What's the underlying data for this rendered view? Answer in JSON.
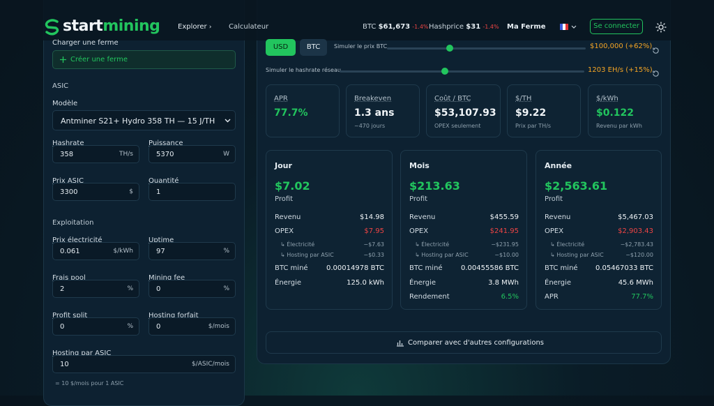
{
  "header": {
    "logo": {
      "start": "start",
      "mining": "mining"
    },
    "nav": [
      "Explorer",
      "Calculateur"
    ],
    "ticker": [
      {
        "label": "BTC",
        "value": "$61,673",
        "change": "-1.4%"
      },
      {
        "label": "Hashprice",
        "value": "$31",
        "change": "-1.4%"
      }
    ],
    "farm": "Ma Ferme",
    "login": "Se connecter"
  },
  "config": {
    "load_label": "Charger une ferme",
    "create_button": "Créer une ferme",
    "asic_section": "ASIC",
    "model_label": "Modèle",
    "model": "Antminer S21+ Hydro 358 TH — 15 J/TH",
    "asic_fields": [
      {
        "label": "Hashrate",
        "value": "358",
        "unit": "TH/s"
      },
      {
        "label": "Puissance",
        "value": "5370",
        "unit": "W"
      },
      {
        "label": "Prix ASIC",
        "value": "3300",
        "unit": "$"
      },
      {
        "label": "Quantité",
        "value": "1"
      }
    ],
    "exploitation_section": "Exploitation",
    "exploitation_fields": [
      {
        "label": "Prix électricité",
        "value": "0.061",
        "unit": "$/kWh"
      },
      {
        "label": "Uptime",
        "value": "97",
        "unit": "%"
      },
      {
        "label": "Frais pool",
        "value": "2",
        "unit": "%"
      },
      {
        "label": "Mining fee",
        "value": "0",
        "unit": "%"
      },
      {
        "label": "Profit split",
        "value": "0",
        "unit": "%"
      },
      {
        "label": "Hosting forfait",
        "value": "0",
        "unit": "$/mois"
      },
      {
        "label": "Hosting par ASIC",
        "value": "10",
        "unit": "$/ASIC/mois"
      }
    ],
    "note": "= 10 $/mois pour 1 ASIC"
  },
  "results": {
    "currencies": [
      "USD",
      "BTC"
    ],
    "sliders": [
      {
        "label": "Simuler le prix BTC",
        "value": "$100,000 (+62%)"
      },
      {
        "label": "Simuler le hashrate réseau",
        "value": "1203 EH/s (+15%)"
      }
    ],
    "kpis": [
      {
        "label": "APR",
        "value": "77.7%",
        "tone": "positive"
      },
      {
        "label": "Breakeven",
        "value": "1.3 ans",
        "sub": "~470 jours"
      },
      {
        "label": "Coût / BTC",
        "value": "$53,107.93",
        "sub": "OPEX seulement"
      },
      {
        "label": "$/TH",
        "value": "$9.22",
        "sub": "Prix par TH/s"
      },
      {
        "label": "$/kWh",
        "value": "$0.122",
        "sub": "Revenu par kWh",
        "tone": "positive"
      }
    ],
    "periods": [
      {
        "title": "Jour",
        "profit": "$7.02",
        "profit_label": "Profit",
        "rows": [
          {
            "label": "Revenu",
            "value": "$14.98"
          },
          {
            "label": "OPEX",
            "value": "$7.95",
            "tone": "negative"
          },
          {
            "label": "↳ Électricité",
            "value": "−$7.63",
            "sub": true
          },
          {
            "label": "↳ Hosting par ASIC",
            "value": "−$0.33",
            "sub": true
          },
          {
            "label": "BTC miné",
            "value": "0.00014978 BTC"
          },
          {
            "label": "Énergie",
            "value": "125.0 kWh"
          }
        ]
      },
      {
        "title": "Mois",
        "profit": "$213.63",
        "profit_label": "Profit",
        "rows": [
          {
            "label": "Revenu",
            "value": "$455.59"
          },
          {
            "label": "OPEX",
            "value": "$241.95",
            "tone": "negative"
          },
          {
            "label": "↳ Électricité",
            "value": "−$231.95",
            "sub": true
          },
          {
            "label": "↳ Hosting par ASIC",
            "value": "−$10.00",
            "sub": true
          },
          {
            "label": "BTC miné",
            "value": "0.00455586 BTC"
          },
          {
            "label": "Énergie",
            "value": "3.8 MWh"
          },
          {
            "label": "Rendement",
            "value": "6.5%",
            "tone": "positive"
          }
        ]
      },
      {
        "title": "Année",
        "profit": "$2,563.61",
        "profit_label": "Profit",
        "rows": [
          {
            "label": "Revenu",
            "value": "$5,467.03"
          },
          {
            "label": "OPEX",
            "value": "$2,903.43",
            "tone": "negative"
          },
          {
            "label": "↳ Électricité",
            "value": "−$2,783.43",
            "sub": true
          },
          {
            "label": "↳ Hosting par ASIC",
            "value": "−$120.00",
            "sub": true
          },
          {
            "label": "BTC miné",
            "value": "0.05467033 BTC"
          },
          {
            "label": "Énergie",
            "value": "45.6 MWh"
          },
          {
            "label": "APR",
            "value": "77.7%",
            "tone": "positive"
          }
        ]
      }
    ],
    "compare_button": "Comparer avec d'autres configurations"
  }
}
